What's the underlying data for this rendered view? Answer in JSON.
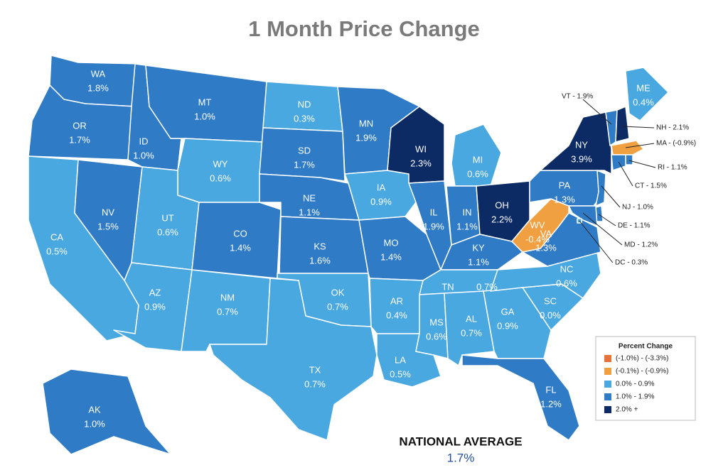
{
  "title": "1 Month Price Change",
  "states": [
    {
      "abbr": "WA",
      "value": "1.8%",
      "color": "#2f7bc5"
    },
    {
      "abbr": "OR",
      "value": "1.7%",
      "color": "#2f7bc5"
    },
    {
      "abbr": "CA",
      "value": "0.5%",
      "color": "#4aa8e0"
    },
    {
      "abbr": "NV",
      "value": "1.5%",
      "color": "#2f7bc5"
    },
    {
      "abbr": "ID",
      "value": "1.0%",
      "color": "#2f7bc5"
    },
    {
      "abbr": "MT",
      "value": "1.0%",
      "color": "#2f7bc5"
    },
    {
      "abbr": "WY",
      "value": "0.6%",
      "color": "#4aa8e0"
    },
    {
      "abbr": "UT",
      "value": "0.6%",
      "color": "#4aa8e0"
    },
    {
      "abbr": "AZ",
      "value": "0.9%",
      "color": "#4aa8e0"
    },
    {
      "abbr": "NM",
      "value": "0.7%",
      "color": "#4aa8e0"
    },
    {
      "abbr": "CO",
      "value": "1.4%",
      "color": "#2f7bc5"
    },
    {
      "abbr": "ND",
      "value": "0.3%",
      "color": "#4aa8e0"
    },
    {
      "abbr": "SD",
      "value": "1.7%",
      "color": "#2f7bc5"
    },
    {
      "abbr": "NE",
      "value": "1.1%",
      "color": "#2f7bc5"
    },
    {
      "abbr": "KS",
      "value": "1.6%",
      "color": "#2f7bc5"
    },
    {
      "abbr": "OK",
      "value": "0.7%",
      "color": "#4aa8e0"
    },
    {
      "abbr": "TX",
      "value": "0.7%",
      "color": "#4aa8e0"
    },
    {
      "abbr": "MN",
      "value": "1.9%",
      "color": "#2f7bc5"
    },
    {
      "abbr": "IA",
      "value": "0.9%",
      "color": "#4aa8e0"
    },
    {
      "abbr": "MO",
      "value": "1.4%",
      "color": "#2f7bc5"
    },
    {
      "abbr": "AR",
      "value": "0.4%",
      "color": "#4aa8e0"
    },
    {
      "abbr": "LA",
      "value": "0.5%",
      "color": "#4aa8e0"
    },
    {
      "abbr": "WI",
      "value": "2.3%",
      "color": "#0c2a63"
    },
    {
      "abbr": "IL",
      "value": "1.9%",
      "color": "#2f7bc5"
    },
    {
      "abbr": "MI",
      "value": "0.6%",
      "color": "#4aa8e0"
    },
    {
      "abbr": "IN",
      "value": "1.1%",
      "color": "#2f7bc5"
    },
    {
      "abbr": "OH",
      "value": "2.2%",
      "color": "#0c2a63"
    },
    {
      "abbr": "KY",
      "value": "1.1%",
      "color": "#2f7bc5"
    },
    {
      "abbr": "TN",
      "value": "0.7%",
      "color": "#4aa8e0"
    },
    {
      "abbr": "MS",
      "value": "0.6%",
      "color": "#4aa8e0"
    },
    {
      "abbr": "AL",
      "value": "0.7%",
      "color": "#4aa8e0"
    },
    {
      "abbr": "GA",
      "value": "0.9%",
      "color": "#4aa8e0"
    },
    {
      "abbr": "FL",
      "value": "1.2%",
      "color": "#2f7bc5"
    },
    {
      "abbr": "SC",
      "value": "0.0%",
      "color": "#4aa8e0"
    },
    {
      "abbr": "NC",
      "value": "0.6%",
      "color": "#4aa8e0"
    },
    {
      "abbr": "VA",
      "value": "1.3%",
      "color": "#2f7bc5"
    },
    {
      "abbr": "WV",
      "value": "-0.4%",
      "color": "#f0a040"
    },
    {
      "abbr": "PA",
      "value": "1.3%",
      "color": "#2f7bc5"
    },
    {
      "abbr": "NY",
      "value": "3.9%",
      "color": "#0c2a63"
    },
    {
      "abbr": "ME",
      "value": "0.4%",
      "color": "#4aa8e0"
    },
    {
      "abbr": "AK",
      "value": "1.0%",
      "color": "#2f7bc5"
    }
  ],
  "callouts": [
    {
      "text": "VT - 1.9%",
      "color": "#2f7bc5"
    },
    {
      "text": "NH - 2.1%",
      "color": "#0c2a63"
    },
    {
      "text": "MA - (-0.9%)",
      "color": "#f0a040"
    },
    {
      "text": "RI - 1.1%",
      "color": "#2f7bc5"
    },
    {
      "text": "CT - 1.5%",
      "color": "#2f7bc5"
    },
    {
      "text": "NJ - 1.0%",
      "color": "#2f7bc5"
    },
    {
      "text": "DE - 1.1%",
      "color": "#2f7bc5"
    },
    {
      "text": "MD - 1.2%",
      "color": "#2f7bc5"
    },
    {
      "text": "DC - 0.3%",
      "color": "#4aa8e0"
    }
  ],
  "legend": {
    "title": "Percent Change",
    "items": [
      {
        "label": "(-1.0%) - (-3.3%)",
        "color": "#e8733a"
      },
      {
        "label": "(-0.1%) - (-0.9%)",
        "color": "#f0a040"
      },
      {
        "label": "0.0% - 0.9%",
        "color": "#4aa8e0"
      },
      {
        "label": "1.0% - 1.9%",
        "color": "#2f7bc5"
      },
      {
        "label": "2.0% +",
        "color": "#0c2a63"
      }
    ]
  },
  "footer": {
    "label": "NATIONAL AVERAGE",
    "value": "1.7%"
  }
}
